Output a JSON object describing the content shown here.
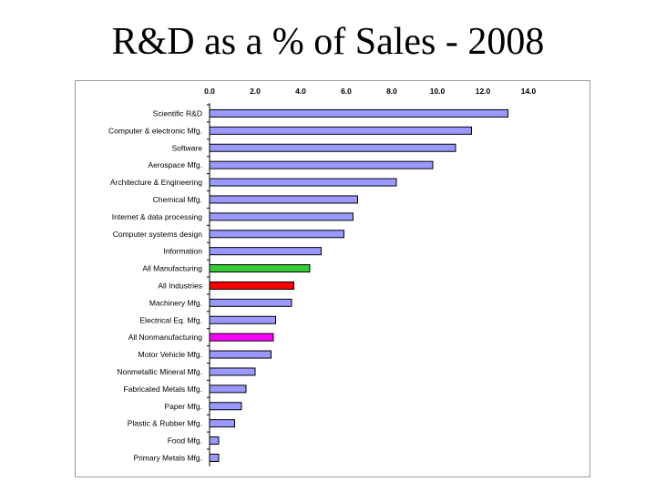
{
  "slide": {
    "title": "R&D as a % of Sales - 2008"
  },
  "chart_data": {
    "type": "bar",
    "orientation": "horizontal",
    "title": "R&D as a % of Sales - 2008",
    "xlabel": "",
    "ylabel": "",
    "xlim": [
      0,
      14
    ],
    "ticks": [
      "0.0",
      "2.0",
      "4.0",
      "6.0",
      "8.0",
      "10.0",
      "12.0",
      "14.0"
    ],
    "axis_position": "top",
    "categories": [
      "Scientific R&D",
      "Computer & electronic Mfg.",
      "Software",
      "Aerospace Mfg.",
      "Architecture & Engineering",
      "Chemical Mfg.",
      "Internet & data processing",
      "Computer systems design",
      "Information",
      "All Manufacturing",
      "All Industries",
      "Machinery Mfg.",
      "Electrical Eq. Mfg.",
      "All Nonmanufacturing",
      "Motor Vehicle Mfg.",
      "Nonmetallic Mineral Mfg.",
      "Fabricated Metals Mfg.",
      "Paper Mfg.",
      "Plastic & Rubber Mfg.",
      "Food Mfg.",
      "Primary Metals Mfg."
    ],
    "values": [
      13.1,
      11.5,
      10.8,
      9.8,
      8.2,
      6.5,
      6.3,
      5.9,
      4.9,
      4.4,
      3.7,
      3.6,
      2.9,
      2.8,
      2.7,
      2.0,
      1.6,
      1.4,
      1.1,
      0.4,
      0.4
    ],
    "colors": {
      "default": "#9999ff",
      "All Manufacturing": "#33cc33",
      "All Industries": "#ff0000",
      "All Nonmanufacturing": "#ff00ff"
    },
    "bar_stroke": "#000000",
    "grid": false
  }
}
